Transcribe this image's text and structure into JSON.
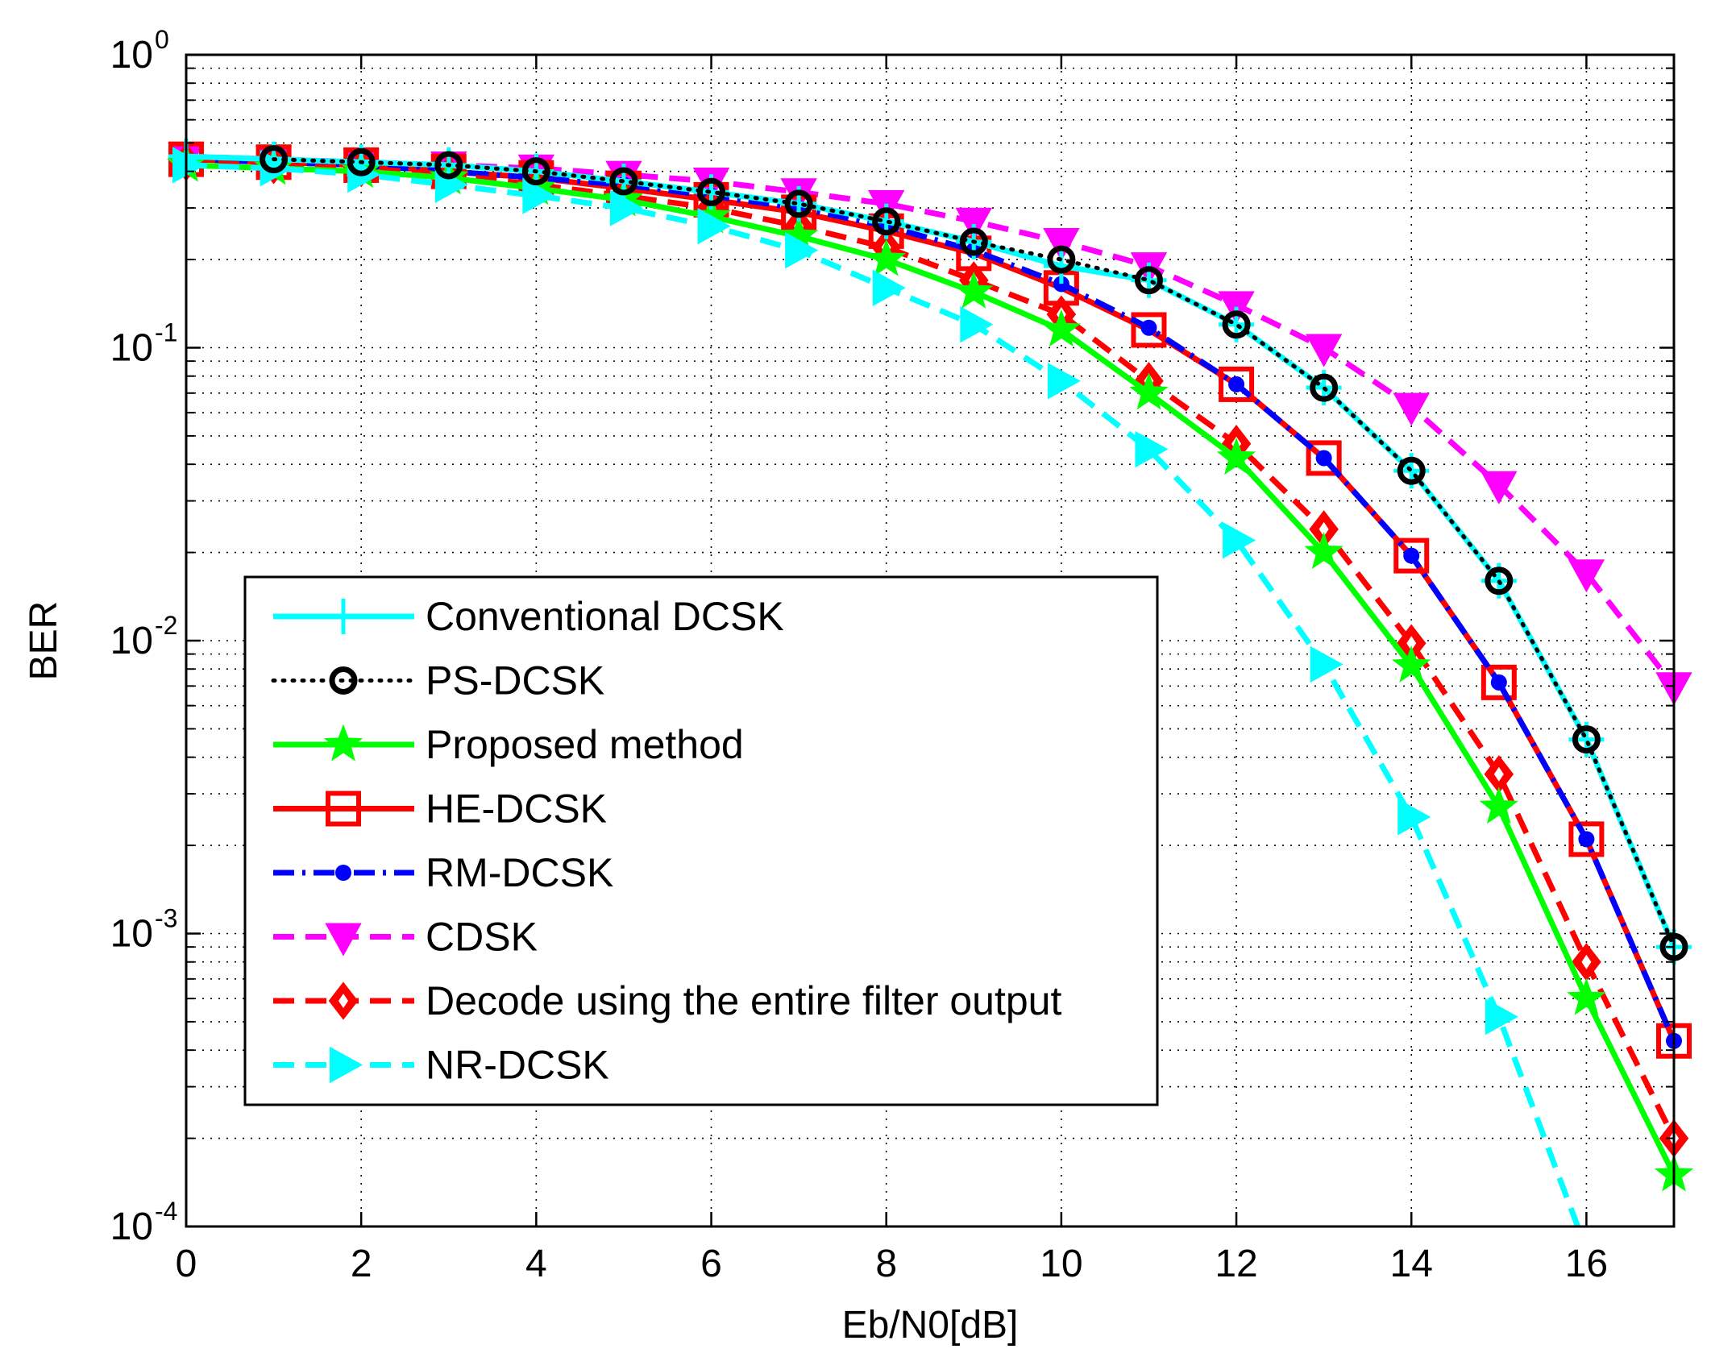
{
  "chart_data": {
    "type": "line",
    "title": "",
    "xlabel": "Eb/N0[dB]",
    "ylabel": "BER",
    "xlim": [
      0,
      17
    ],
    "ylim": [
      0.0001,
      1
    ],
    "yscale": "log",
    "grid": true,
    "legend_position": "lower-left",
    "x_ticks": [
      {
        "value": 0,
        "label": "0"
      },
      {
        "value": 2,
        "label": "2"
      },
      {
        "value": 4,
        "label": "4"
      },
      {
        "value": 6,
        "label": "6"
      },
      {
        "value": 8,
        "label": "8"
      },
      {
        "value": 10,
        "label": "10"
      },
      {
        "value": 12,
        "label": "12"
      },
      {
        "value": 14,
        "label": "14"
      },
      {
        "value": 16,
        "label": "16"
      }
    ],
    "y_ticks": [
      {
        "value": 1,
        "base": "10",
        "exp": "0"
      },
      {
        "value": 0.1,
        "base": "10",
        "exp": "-1"
      },
      {
        "value": 0.01,
        "base": "10",
        "exp": "-2"
      },
      {
        "value": 0.001,
        "base": "10",
        "exp": "-3"
      },
      {
        "value": 0.0001,
        "base": "10",
        "exp": "-4"
      }
    ],
    "series": [
      {
        "name": "Conventional DCSK",
        "color": "#00ffff",
        "dash": "solid",
        "marker": "plus",
        "x": [
          0,
          1,
          2,
          3,
          4,
          5,
          6,
          7,
          8,
          9,
          10,
          11,
          12,
          13,
          14,
          15,
          16,
          17
        ],
        "y": [
          0.45,
          0.44,
          0.43,
          0.42,
          0.4,
          0.37,
          0.34,
          0.31,
          0.27,
          0.23,
          0.19,
          0.17,
          0.12,
          0.073,
          0.038,
          0.016,
          0.0046,
          0.0009
        ]
      },
      {
        "name": "PS-DCSK",
        "color": "#000000",
        "dash": "dotted",
        "marker": "circle",
        "x": [
          1,
          2,
          3,
          4,
          5,
          6,
          7,
          8,
          9,
          10,
          11,
          12,
          13,
          14,
          15,
          16,
          17
        ],
        "y": [
          0.44,
          0.43,
          0.42,
          0.4,
          0.37,
          0.34,
          0.31,
          0.27,
          0.23,
          0.2,
          0.17,
          0.12,
          0.073,
          0.038,
          0.016,
          0.0046,
          0.0009
        ]
      },
      {
        "name": "Proposed method",
        "color": "#00ff00",
        "dash": "solid",
        "marker": "star",
        "x": [
          0,
          1,
          2,
          3,
          4,
          5,
          6,
          7,
          8,
          9,
          10,
          11,
          12,
          13,
          14,
          15,
          16,
          17
        ],
        "y": [
          0.42,
          0.41,
          0.4,
          0.38,
          0.35,
          0.32,
          0.28,
          0.24,
          0.2,
          0.155,
          0.115,
          0.07,
          0.042,
          0.02,
          0.0082,
          0.0027,
          0.0006,
          0.00015
        ]
      },
      {
        "name": "HE-DCSK",
        "color": "#ff0000",
        "dash": "solid",
        "marker": "square",
        "x": [
          0,
          1,
          2,
          3,
          4,
          5,
          6,
          7,
          8,
          9,
          10,
          11,
          12,
          13,
          14,
          15,
          16,
          17
        ],
        "y": [
          0.44,
          0.43,
          0.42,
          0.4,
          0.38,
          0.35,
          0.32,
          0.29,
          0.25,
          0.21,
          0.16,
          0.115,
          0.075,
          0.042,
          0.0195,
          0.0072,
          0.0021,
          0.00043
        ]
      },
      {
        "name": "RM-DCSK",
        "color": "#0000ff",
        "dash": "dashdot",
        "marker": "dot",
        "x": [
          0,
          1,
          2,
          3,
          4,
          5,
          6,
          7,
          8,
          9,
          10,
          11,
          12,
          13,
          14,
          15,
          16,
          17
        ],
        "y": [
          0.44,
          0.43,
          0.42,
          0.4,
          0.38,
          0.36,
          0.33,
          0.3,
          0.26,
          0.215,
          0.165,
          0.117,
          0.075,
          0.042,
          0.0195,
          0.0072,
          0.0021,
          0.00043
        ]
      },
      {
        "name": "CDSK",
        "color": "#ff00ff",
        "dash": "dashed",
        "marker": "triangle-down",
        "x": [
          0,
          1,
          2,
          3,
          4,
          5,
          6,
          7,
          8,
          9,
          10,
          11,
          12,
          13,
          14,
          15,
          16,
          17
        ],
        "y": [
          0.45,
          0.44,
          0.43,
          0.42,
          0.41,
          0.39,
          0.37,
          0.34,
          0.31,
          0.27,
          0.23,
          0.19,
          0.14,
          0.1,
          0.063,
          0.034,
          0.017,
          0.007
        ]
      },
      {
        "name": "Decode using the entire filter output",
        "color": "#ff0000",
        "dash": "dashed",
        "marker": "diamond",
        "x": [
          0,
          1,
          2,
          3,
          4,
          5,
          6,
          7,
          8,
          9,
          10,
          11,
          12,
          13,
          14,
          15,
          16,
          17
        ],
        "y": [
          0.43,
          0.42,
          0.41,
          0.39,
          0.36,
          0.33,
          0.3,
          0.26,
          0.22,
          0.17,
          0.13,
          0.077,
          0.047,
          0.024,
          0.0098,
          0.0035,
          0.0008,
          0.0002
        ]
      },
      {
        "name": "NR-DCSK",
        "color": "#00ffff",
        "dash": "dashed",
        "marker": "triangle-right",
        "x": [
          0,
          1,
          2,
          3,
          4,
          5,
          6,
          7,
          8,
          9,
          10,
          11,
          12,
          13,
          14,
          15,
          15.9
        ],
        "y": [
          0.42,
          0.41,
          0.39,
          0.36,
          0.33,
          0.3,
          0.26,
          0.215,
          0.16,
          0.12,
          0.077,
          0.045,
          0.022,
          0.0083,
          0.0025,
          0.00052,
          0.0001
        ]
      }
    ]
  }
}
